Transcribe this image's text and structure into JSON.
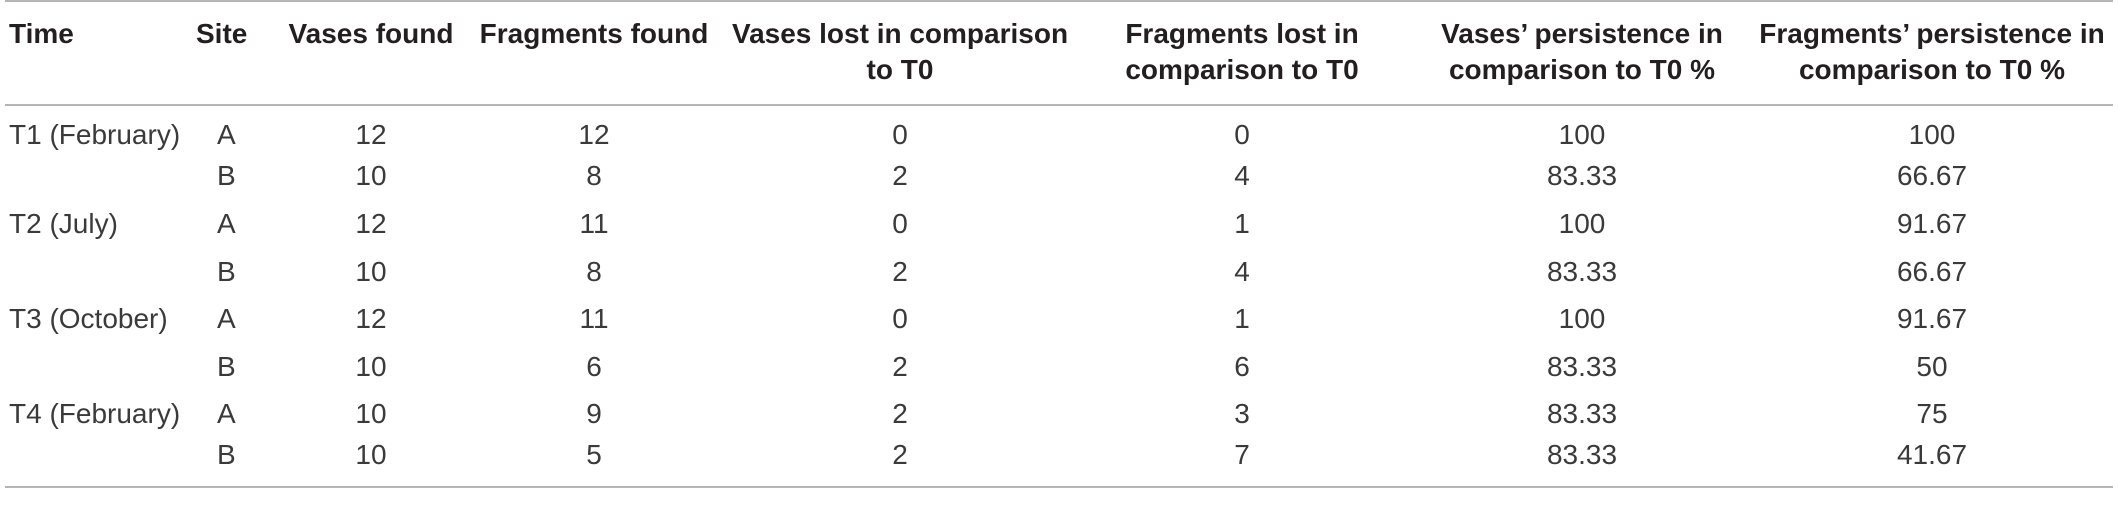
{
  "table": {
    "headers": [
      "Time",
      "Site",
      "Vases found",
      "Fragments found",
      "Vases lost in comparison to T0",
      "Fragments lost in comparison to T0",
      "Vases’ persistence in comparison to T0 %",
      "Fragments’ persistence in comparison to T0 %"
    ],
    "rows": [
      [
        "T1 (February)",
        "A",
        "12",
        "12",
        "0",
        "0",
        "100",
        "100"
      ],
      [
        "",
        "B",
        "10",
        "8",
        "2",
        "4",
        "83.33",
        "66.67"
      ],
      [
        "T2 (July)",
        "A",
        "12",
        "11",
        "0",
        "1",
        "100",
        "91.67"
      ],
      [
        "",
        "B",
        "10",
        "8",
        "2",
        "4",
        "83.33",
        "66.67"
      ],
      [
        "T3 (October)",
        "A",
        "12",
        "11",
        "0",
        "1",
        "100",
        "91.67"
      ],
      [
        "",
        "B",
        "10",
        "6",
        "2",
        "6",
        "83.33",
        "50"
      ],
      [
        "T4 (February)",
        "A",
        "10",
        "9",
        "2",
        "3",
        "83.33",
        "75"
      ],
      [
        "",
        "B",
        "10",
        "5",
        "2",
        "7",
        "83.33",
        "41.67"
      ]
    ]
  }
}
